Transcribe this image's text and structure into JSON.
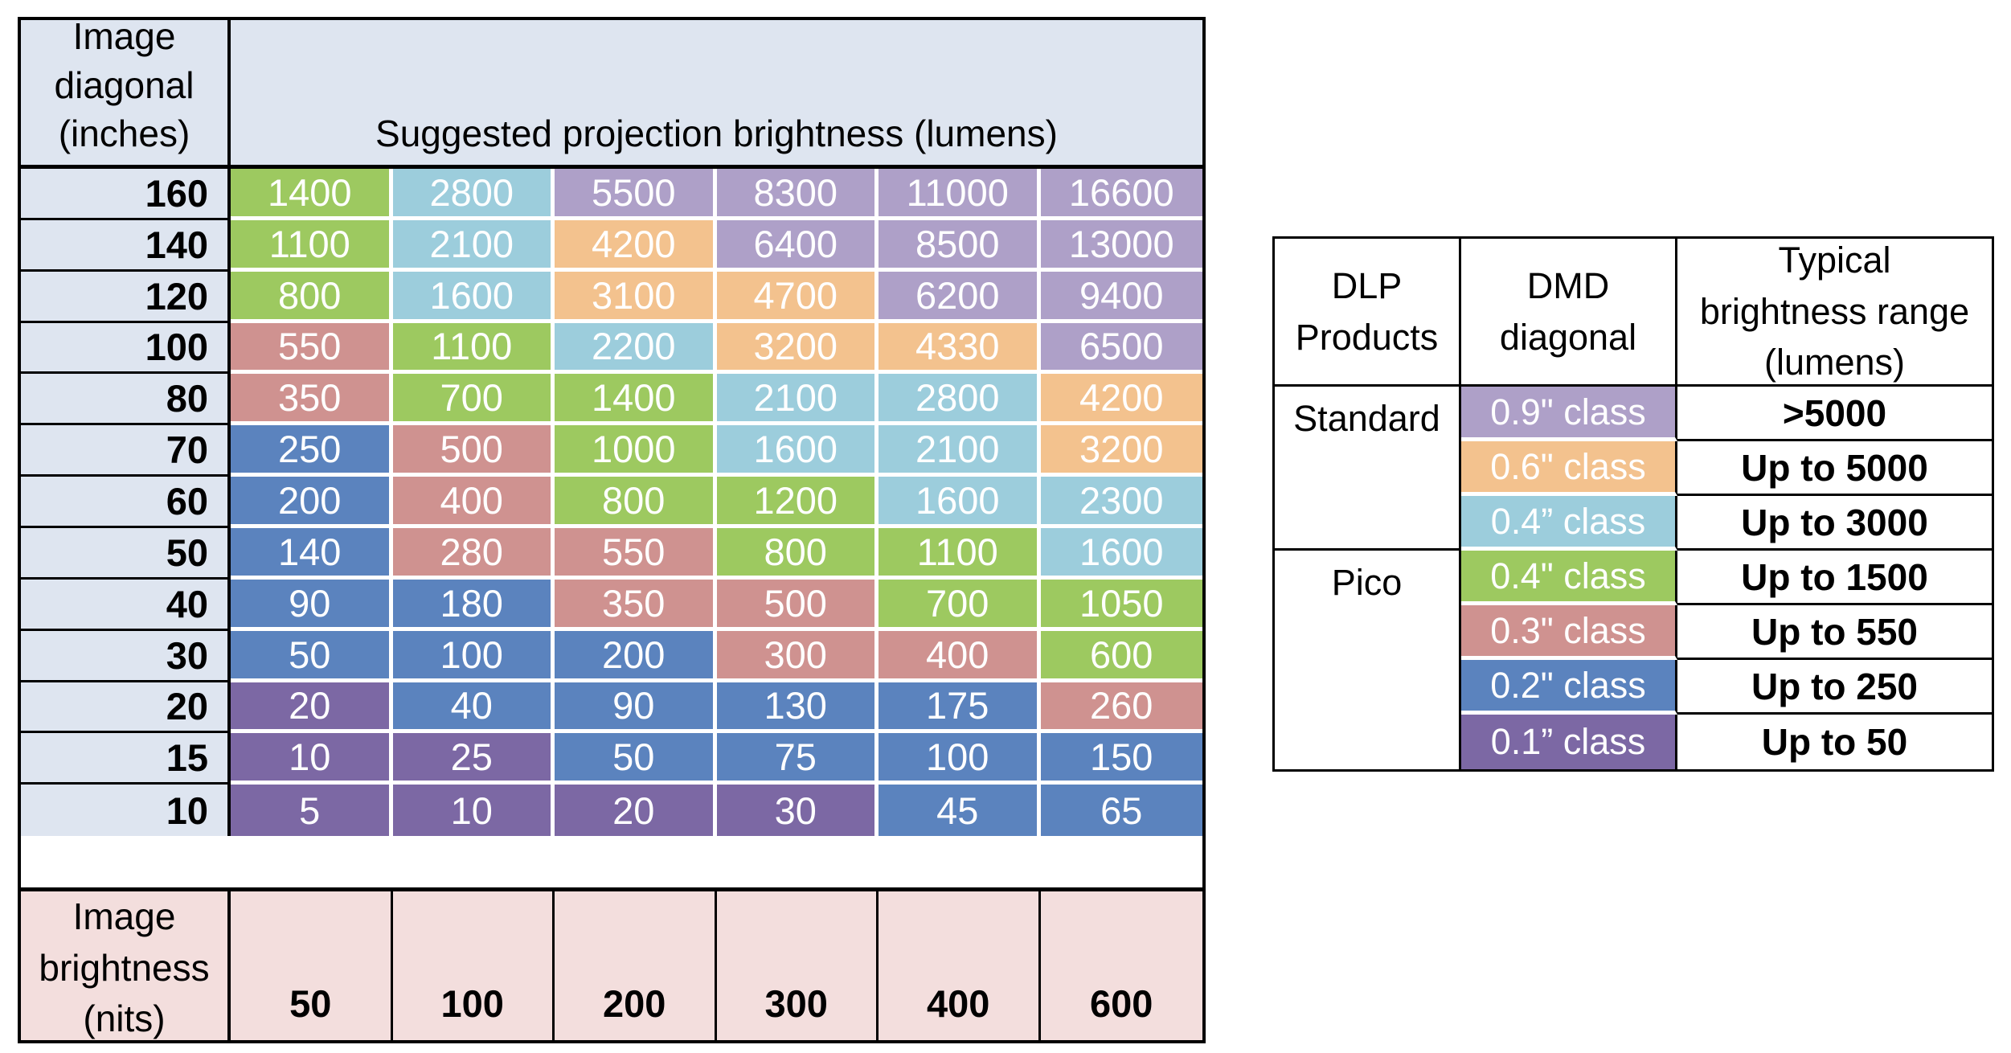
{
  "colors": {
    "g": "#9DC960",
    "c": "#9CCDDC",
    "p": "#AEA0C8",
    "o": "#F3C28E",
    "r": "#CF9290",
    "b": "#5B83BE",
    "d": "#7C68A4",
    "header_bg": "#DEE5F0",
    "footer_bg": "#F3DEDD",
    "grid_line": "#000000",
    "cell_text": "#FFFFFF"
  },
  "left_table": {
    "corner_header": "Image\ndiagonal\n(inches)",
    "main_header": "Suggested projection brightness (lumens)",
    "rows": [
      {
        "label": "160",
        "cells": [
          {
            "v": "1400",
            "c": "g"
          },
          {
            "v": "2800",
            "c": "c"
          },
          {
            "v": "5500",
            "c": "p"
          },
          {
            "v": "8300",
            "c": "p"
          },
          {
            "v": "11000",
            "c": "p"
          },
          {
            "v": "16600",
            "c": "p"
          }
        ]
      },
      {
        "label": "140",
        "cells": [
          {
            "v": "1100",
            "c": "g"
          },
          {
            "v": "2100",
            "c": "c"
          },
          {
            "v": "4200",
            "c": "o"
          },
          {
            "v": "6400",
            "c": "p"
          },
          {
            "v": "8500",
            "c": "p"
          },
          {
            "v": "13000",
            "c": "p"
          }
        ]
      },
      {
        "label": "120",
        "cells": [
          {
            "v": "800",
            "c": "g"
          },
          {
            "v": "1600",
            "c": "c"
          },
          {
            "v": "3100",
            "c": "o"
          },
          {
            "v": "4700",
            "c": "o"
          },
          {
            "v": "6200",
            "c": "p"
          },
          {
            "v": "9400",
            "c": "p"
          }
        ]
      },
      {
        "label": "100",
        "cells": [
          {
            "v": "550",
            "c": "r"
          },
          {
            "v": "1100",
            "c": "g"
          },
          {
            "v": "2200",
            "c": "c"
          },
          {
            "v": "3200",
            "c": "o"
          },
          {
            "v": "4330",
            "c": "o"
          },
          {
            "v": "6500",
            "c": "p"
          }
        ]
      },
      {
        "label": "80",
        "cells": [
          {
            "v": "350",
            "c": "r"
          },
          {
            "v": "700",
            "c": "g"
          },
          {
            "v": "1400",
            "c": "g"
          },
          {
            "v": "2100",
            "c": "c"
          },
          {
            "v": "2800",
            "c": "c"
          },
          {
            "v": "4200",
            "c": "o"
          }
        ]
      },
      {
        "label": "70",
        "cells": [
          {
            "v": "250",
            "c": "b"
          },
          {
            "v": "500",
            "c": "r"
          },
          {
            "v": "1000",
            "c": "g"
          },
          {
            "v": "1600",
            "c": "c"
          },
          {
            "v": "2100",
            "c": "c"
          },
          {
            "v": "3200",
            "c": "o"
          }
        ]
      },
      {
        "label": "60",
        "cells": [
          {
            "v": "200",
            "c": "b"
          },
          {
            "v": "400",
            "c": "r"
          },
          {
            "v": "800",
            "c": "g"
          },
          {
            "v": "1200",
            "c": "g"
          },
          {
            "v": "1600",
            "c": "c"
          },
          {
            "v": "2300",
            "c": "c"
          }
        ]
      },
      {
        "label": "50",
        "cells": [
          {
            "v": "140",
            "c": "b"
          },
          {
            "v": "280",
            "c": "r"
          },
          {
            "v": "550",
            "c": "r"
          },
          {
            "v": "800",
            "c": "g"
          },
          {
            "v": "1100",
            "c": "g"
          },
          {
            "v": "1600",
            "c": "c"
          }
        ]
      },
      {
        "label": "40",
        "cells": [
          {
            "v": "90",
            "c": "b"
          },
          {
            "v": "180",
            "c": "b"
          },
          {
            "v": "350",
            "c": "r"
          },
          {
            "v": "500",
            "c": "r"
          },
          {
            "v": "700",
            "c": "g"
          },
          {
            "v": "1050",
            "c": "g"
          }
        ]
      },
      {
        "label": "30",
        "cells": [
          {
            "v": "50",
            "c": "b"
          },
          {
            "v": "100",
            "c": "b"
          },
          {
            "v": "200",
            "c": "b"
          },
          {
            "v": "300",
            "c": "r"
          },
          {
            "v": "400",
            "c": "r"
          },
          {
            "v": "600",
            "c": "g"
          }
        ]
      },
      {
        "label": "20",
        "cells": [
          {
            "v": "20",
            "c": "d"
          },
          {
            "v": "40",
            "c": "b"
          },
          {
            "v": "90",
            "c": "b"
          },
          {
            "v": "130",
            "c": "b"
          },
          {
            "v": "175",
            "c": "b"
          },
          {
            "v": "260",
            "c": "r"
          }
        ]
      },
      {
        "label": "15",
        "cells": [
          {
            "v": "10",
            "c": "d"
          },
          {
            "v": "25",
            "c": "d"
          },
          {
            "v": "50",
            "c": "b"
          },
          {
            "v": "75",
            "c": "b"
          },
          {
            "v": "100",
            "c": "b"
          },
          {
            "v": "150",
            "c": "b"
          }
        ]
      },
      {
        "label": "10",
        "cells": [
          {
            "v": "5",
            "c": "d"
          },
          {
            "v": "10",
            "c": "d"
          },
          {
            "v": "20",
            "c": "d"
          },
          {
            "v": "30",
            "c": "d"
          },
          {
            "v": "45",
            "c": "b"
          },
          {
            "v": "65",
            "c": "b"
          }
        ]
      }
    ],
    "footer_label": "Image\nbrightness\n(nits)",
    "footer_values": [
      "50",
      "100",
      "200",
      "300",
      "400",
      "600"
    ]
  },
  "right_table": {
    "headers": {
      "products": "DLP\nProducts",
      "dmd": "DMD\ndiagonal",
      "range": "Typical\nbrightness range\n(lumens)"
    },
    "groups": [
      {
        "product": "Standard",
        "rows": [
          {
            "dmd": "0.9\" class",
            "c": "p",
            "range": ">5000"
          },
          {
            "dmd": "0.6\" class",
            "c": "o",
            "range": "Up to 5000"
          },
          {
            "dmd": "0.4” class",
            "c": "c",
            "range": "Up to 3000"
          }
        ]
      },
      {
        "product": "Pico",
        "rows": [
          {
            "dmd": "0.4\" class",
            "c": "g",
            "range": "Up to 1500"
          },
          {
            "dmd": "0.3\" class",
            "c": "r",
            "range": "Up to 550"
          },
          {
            "dmd": "0.2\" class",
            "c": "b",
            "range": "Up to 250"
          },
          {
            "dmd": "0.1” class",
            "c": "d",
            "range": "Up to 50"
          }
        ]
      }
    ]
  },
  "chart_data": [
    {
      "type": "heatmap",
      "title": "Suggested projection brightness (lumens)",
      "xlabel": "Image brightness (nits)",
      "ylabel": "Image diagonal (inches)",
      "x": [
        50,
        100,
        200,
        300,
        400,
        600
      ],
      "y": [
        160,
        140,
        120,
        100,
        80,
        70,
        60,
        50,
        40,
        30,
        20,
        15,
        10
      ],
      "values": [
        [
          1400,
          2800,
          5500,
          8300,
          11000,
          16600
        ],
        [
          1100,
          2100,
          4200,
          6400,
          8500,
          13000
        ],
        [
          800,
          1600,
          3100,
          4700,
          6200,
          9400
        ],
        [
          550,
          1100,
          2200,
          3200,
          4330,
          6500
        ],
        [
          350,
          700,
          1400,
          2100,
          2800,
          4200
        ],
        [
          250,
          500,
          1000,
          1600,
          2100,
          3200
        ],
        [
          200,
          400,
          800,
          1200,
          1600,
          2300
        ],
        [
          140,
          280,
          550,
          800,
          1100,
          1600
        ],
        [
          90,
          180,
          350,
          500,
          700,
          1050
        ],
        [
          50,
          100,
          200,
          300,
          400,
          600
        ],
        [
          20,
          40,
          90,
          130,
          175,
          260
        ],
        [
          10,
          25,
          50,
          75,
          100,
          150
        ],
        [
          5,
          10,
          20,
          30,
          45,
          65
        ]
      ],
      "cell_classes": [
        [
          "g",
          "c",
          "p",
          "p",
          "p",
          "p"
        ],
        [
          "g",
          "c",
          "o",
          "p",
          "p",
          "p"
        ],
        [
          "g",
          "c",
          "o",
          "o",
          "p",
          "p"
        ],
        [
          "r",
          "g",
          "c",
          "o",
          "o",
          "p"
        ],
        [
          "r",
          "g",
          "g",
          "c",
          "c",
          "o"
        ],
        [
          "b",
          "r",
          "g",
          "c",
          "c",
          "o"
        ],
        [
          "b",
          "r",
          "g",
          "g",
          "c",
          "c"
        ],
        [
          "b",
          "r",
          "r",
          "g",
          "g",
          "c"
        ],
        [
          "b",
          "b",
          "r",
          "r",
          "g",
          "g"
        ],
        [
          "b",
          "b",
          "b",
          "r",
          "r",
          "g"
        ],
        [
          "d",
          "b",
          "b",
          "b",
          "b",
          "r"
        ],
        [
          "d",
          "d",
          "b",
          "b",
          "b",
          "b"
        ],
        [
          "d",
          "d",
          "d",
          "d",
          "b",
          "b"
        ]
      ],
      "legend": {
        "p": "Standard 0.9\" class (>5000 lumens)",
        "o": "Standard 0.6\" class (up to 5000 lumens)",
        "c": "Standard 0.4” class (up to 3000 lumens)",
        "g": "Pico 0.4\" class (up to 1500 lumens)",
        "r": "Pico 0.3\" class (up to 550 lumens)",
        "b": "Pico 0.2\" class (up to 250 lumens)",
        "d": "Pico 0.1” class (up to 50 lumens)"
      },
      "grid": true,
      "legend_position": "separate right table"
    },
    {
      "type": "table",
      "title": "DLP products: DMD diagonal vs typical brightness range",
      "columns": [
        "DLP Products",
        "DMD diagonal",
        "Typical brightness range (lumens)"
      ],
      "rows": [
        [
          "Standard",
          "0.9\" class",
          ">5000"
        ],
        [
          "",
          "0.6\" class",
          "Up to 5000"
        ],
        [
          "",
          "0.4” class",
          "Up to 3000"
        ],
        [
          "Pico",
          "0.4\" class",
          "Up to 1500"
        ],
        [
          "",
          "0.3\" class",
          "Up to 550"
        ],
        [
          "",
          "0.2\" class",
          "Up to 250"
        ],
        [
          "",
          "0.1” class",
          "Up to 50"
        ]
      ]
    }
  ]
}
